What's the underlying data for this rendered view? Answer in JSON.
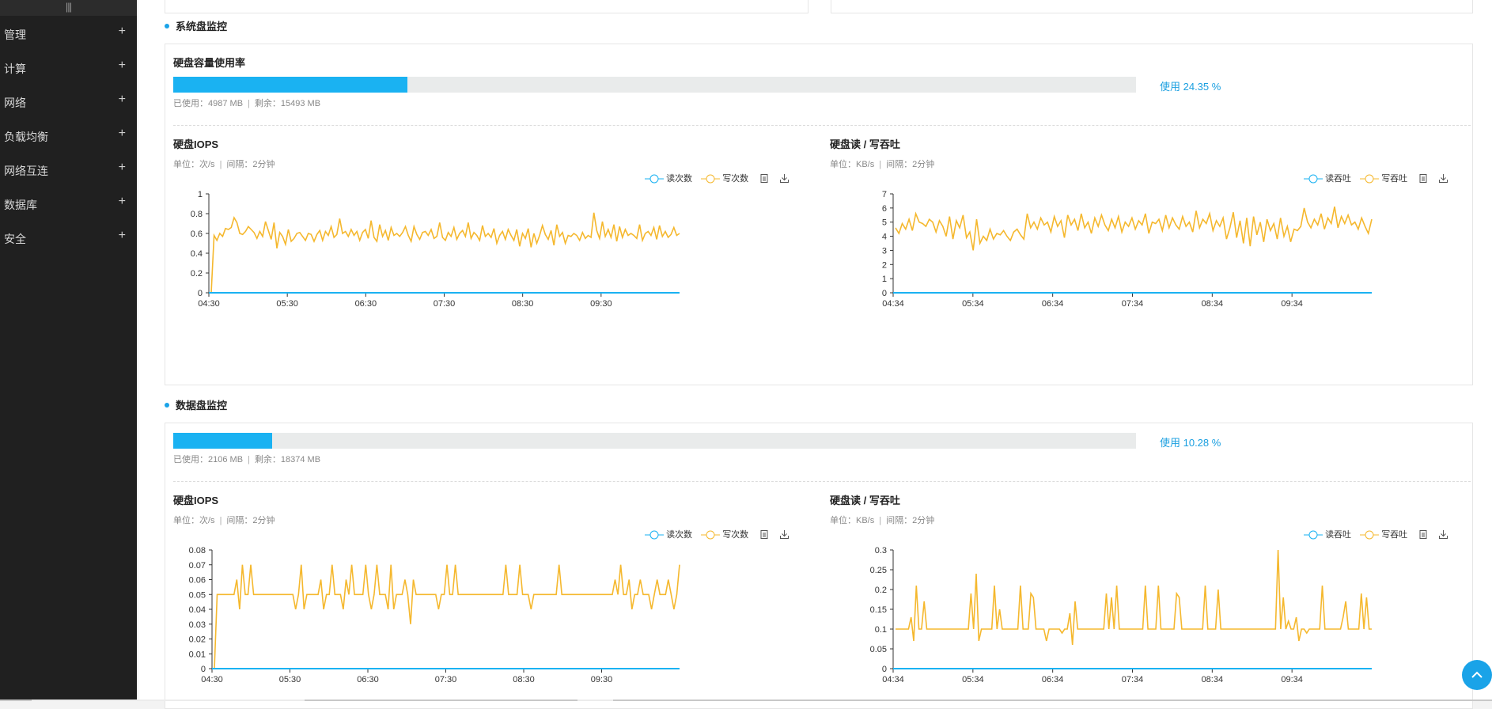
{
  "sidebar": {
    "collapse_glyph": "|||",
    "items": [
      {
        "label": "管理"
      },
      {
        "label": "计算"
      },
      {
        "label": "网络"
      },
      {
        "label": "负载均衡"
      },
      {
        "label": "网络互连"
      },
      {
        "label": "数据库"
      },
      {
        "label": "安全"
      }
    ],
    "plus": "+"
  },
  "colors": {
    "accent": "#1ab2f2",
    "read": "#1ab2f2",
    "write": "#f5b82e",
    "sidebar_bg": "#202020"
  },
  "sections": [
    {
      "title": "系统盘监控",
      "capacity": {
        "title": "硬盘容量使用率",
        "percent": 24.35,
        "usage_label": "使用 24.35 %",
        "used": "已使用：4987 MB",
        "remaining": "剩余：15493 MB"
      },
      "charts": [
        {
          "title": "硬盘IOPS",
          "unit": "单位：次/s",
          "interval": "间隔：2分钟",
          "legend": [
            "读次数",
            "写次数"
          ],
          "icons": [
            "doc-icon",
            "download-icon"
          ]
        },
        {
          "title": "硬盘读 / 写吞吐",
          "unit": "单位：KB/s",
          "interval": "间隔：2分钟",
          "legend": [
            "读吞吐",
            "写吞吐"
          ],
          "icons": [
            "doc-icon",
            "download-icon"
          ]
        }
      ]
    },
    {
      "title": "数据盘监控",
      "capacity": {
        "title": "",
        "percent": 10.28,
        "usage_label": "使用 10.28 %",
        "used": "已使用：2106 MB",
        "remaining": "剩余：18374 MB"
      },
      "charts": [
        {
          "title": "硬盘IOPS",
          "unit": "单位：次/s",
          "interval": "间隔：2分钟",
          "legend": [
            "读次数",
            "写次数"
          ],
          "icons": [
            "doc-icon",
            "download-icon"
          ]
        },
        {
          "title": "硬盘读 / 写吞吐",
          "unit": "单位：KB/s",
          "interval": "间隔：2分钟",
          "legend": [
            "读吞吐",
            "写吞吐"
          ],
          "icons": [
            "doc-icon",
            "download-icon"
          ]
        }
      ]
    }
  ],
  "chart_data": [
    {
      "type": "line",
      "x_ticks": [
        "04:30",
        "05:30",
        "06:30",
        "07:30",
        "08:30",
        "09:30"
      ],
      "ylim": [
        0,
        1
      ],
      "y_ticks": [
        "0",
        "0.2",
        "0.4",
        "0.6",
        "0.8",
        "1"
      ],
      "series": [
        {
          "name": "读次数",
          "values": [
            0
          ]
        },
        {
          "name": "写次数",
          "values": [
            0,
            0.58,
            0.53,
            0.6,
            0.57,
            0.65,
            0.64,
            0.66,
            0.76,
            0.71,
            0.6,
            0.59,
            0.62,
            0.67,
            0.64,
            0.61,
            0.55,
            0.62,
            0.57,
            0.72,
            0.63,
            0.54,
            0.71,
            0.45,
            0.61,
            0.57,
            0.49,
            0.64,
            0.52,
            0.55,
            0.6,
            0.61,
            0.57,
            0.53,
            0.6,
            0.59,
            0.52,
            0.59,
            0.63,
            0.53,
            0.62,
            0.58,
            0.67,
            0.56,
            0.59,
            0.75,
            0.6,
            0.62,
            0.57,
            0.64,
            0.58,
            0.62,
            0.53,
            0.61,
            0.64,
            0.55,
            0.73,
            0.56,
            0.52,
            0.69,
            0.57,
            0.63,
            0.53,
            0.66,
            0.58,
            0.6,
            0.57,
            0.61,
            0.67,
            0.58,
            0.52,
            0.67,
            0.59,
            0.54,
            0.61,
            0.62,
            0.58,
            0.64,
            0.55,
            0.57,
            0.71,
            0.56,
            0.53,
            0.61,
            0.57,
            0.66,
            0.54,
            0.6,
            0.63,
            0.57,
            0.71,
            0.55,
            0.61,
            0.58,
            0.53,
            0.68,
            0.57,
            0.6,
            0.56,
            0.65,
            0.5,
            0.58,
            0.62,
            0.54,
            0.64,
            0.58,
            0.53,
            0.64,
            0.47,
            0.6,
            0.55,
            0.65,
            0.46,
            0.6,
            0.5,
            0.58,
            0.68,
            0.59,
            0.54,
            0.63,
            0.48,
            0.69,
            0.57,
            0.61,
            0.5,
            0.58,
            0.57,
            0.6,
            0.58,
            0.53,
            0.61,
            0.55,
            0.58,
            0.56,
            0.81,
            0.63,
            0.55,
            0.72,
            0.57,
            0.64,
            0.56,
            0.69,
            0.52,
            0.67,
            0.56,
            0.64,
            0.58,
            0.6,
            0.58,
            0.55,
            0.69,
            0.53,
            0.6,
            0.62,
            0.58,
            0.66,
            0.54,
            0.68,
            0.57,
            0.62,
            0.56,
            0.59,
            0.66,
            0.58,
            0.6
          ]
        }
      ]
    },
    {
      "type": "line",
      "x_ticks": [
        "04:34",
        "05:34",
        "06:34",
        "07:34",
        "08:34",
        "09:34"
      ],
      "ylim": [
        0,
        7
      ],
      "y_ticks": [
        "0",
        "1",
        "2",
        "3",
        "4",
        "5",
        "6",
        "7"
      ],
      "series": [
        {
          "name": "读吞吐",
          "values": [
            0
          ]
        },
        {
          "name": "写吞吐",
          "values": [
            4.6,
            4.2,
            4.9,
            4.5,
            5.2,
            4.4,
            5.6,
            5,
            4.9,
            4.7,
            5.2,
            5,
            4.3,
            5.1,
            4.7,
            4,
            5.4,
            3.8,
            5.1,
            4.6,
            5.5,
            3.9,
            4.3,
            3,
            5.2,
            3.5,
            4,
            3.7,
            4.5,
            3.8,
            4.2,
            4.1,
            4.4,
            4,
            3.7,
            4.3,
            4.5,
            4.1,
            3.8,
            5.6,
            4.6,
            5,
            4.5,
            5.3,
            4.8,
            5,
            4.3,
            5.4,
            4.7,
            5.1,
            3.9,
            5.5,
            4.8,
            5.2,
            4.4,
            5.6,
            4.6,
            5,
            4.2,
            5.3,
            4.7,
            5.5,
            4.8,
            4.4,
            5.2,
            4.6,
            5.4,
            4.3,
            5,
            4.7,
            5.3,
            4.5,
            5.1,
            4.8,
            5.6,
            4.2,
            5,
            4.9,
            5.2,
            4.4,
            5.5,
            4.6,
            5.3,
            4.8,
            4.5,
            5.4,
            4.7,
            5,
            4.3,
            5.8,
            4.6,
            5.2,
            4.9,
            5.6,
            4.4,
            5.1,
            4.7,
            5.3,
            3.8,
            4.6,
            5.7,
            3.9,
            5.1,
            3.5,
            5.3,
            3.3,
            5.4,
            4.1,
            5,
            3.6,
            5.2,
            4.4,
            4.9,
            3.8,
            5.3,
            4,
            4.7,
            3.6,
            4.5,
            4.4,
            4.7,
            6,
            5,
            4.6,
            5.2,
            4.8,
            5.6,
            4.5,
            5.3,
            4.9,
            6.1,
            4.6,
            5.4,
            4.9,
            5.5,
            4.8,
            5,
            4.5,
            5.3,
            4.7,
            4.2,
            5.2
          ]
        }
      ]
    },
    {
      "type": "line",
      "x_ticks": [
        "04:30",
        "05:30",
        "06:30",
        "07:30",
        "08:30",
        "09:30"
      ],
      "ylim": [
        0,
        0.08
      ],
      "y_ticks": [
        "0",
        "0.01",
        "0.02",
        "0.03",
        "0.04",
        "0.05",
        "0.06",
        "0.07",
        "0.08"
      ],
      "series": [
        {
          "name": "读次数",
          "values": [
            0
          ]
        },
        {
          "name": "写次数",
          "values": [
            0,
            0.05,
            0.05,
            0.05,
            0.05,
            0.05,
            0.05,
            0.05,
            0.06,
            0.04,
            0.07,
            0.05,
            0.05,
            0.07,
            0.05,
            0.05,
            0.05,
            0.05,
            0.05,
            0.05,
            0.05,
            0.05,
            0.05,
            0.05,
            0.05,
            0.05,
            0.05,
            0.05,
            0.05,
            0.04,
            0.05,
            0.07,
            0.04,
            0.05,
            0.05,
            0.05,
            0.05,
            0.05,
            0.06,
            0.04,
            0.05,
            0.05,
            0.07,
            0.05,
            0.05,
            0.05,
            0.04,
            0.06,
            0.05,
            0.07,
            0.05,
            0.05,
            0.05,
            0.05,
            0.07,
            0.05,
            0.04,
            0.05,
            0.07,
            0.05,
            0.05,
            0.05,
            0.04,
            0.07,
            0.04,
            0.05,
            0.05,
            0.05,
            0.06,
            0.05,
            0.03,
            0.06,
            0.05,
            0.05,
            0.05,
            0.05,
            0.05,
            0.05,
            0.05,
            0.05,
            0.04,
            0.05,
            0.05,
            0.07,
            0.05,
            0.05,
            0.07,
            0.05,
            0.05,
            0.05,
            0.05,
            0.05,
            0.05,
            0.05,
            0.05,
            0.05,
            0.05,
            0.05,
            0.05,
            0.05,
            0.05,
            0.05,
            0.05,
            0.05,
            0.07,
            0.05,
            0.05,
            0.05,
            0.05,
            0.07,
            0.05,
            0.05,
            0.05,
            0.04,
            0.05,
            0.05,
            0.05,
            0.05,
            0.05,
            0.05,
            0.05,
            0.05,
            0.05,
            0.07,
            0.05,
            0.05,
            0.05,
            0.05,
            0.05,
            0.05,
            0.05,
            0.05,
            0.05,
            0.05,
            0.05,
            0.05,
            0.05,
            0.05,
            0.05,
            0.05,
            0.05,
            0.05,
            0.05,
            0.06,
            0.05,
            0.07,
            0.05,
            0.05,
            0.06,
            0.04,
            0.05,
            0.05,
            0.06,
            0.05,
            0.05,
            0.05,
            0.04,
            0.05,
            0.06,
            0.05,
            0.05,
            0.05,
            0.06,
            0.05,
            0.04,
            0.05,
            0.07
          ]
        }
      ]
    },
    {
      "type": "line",
      "x_ticks": [
        "04:34",
        "05:34",
        "06:34",
        "07:34",
        "08:34",
        "09:34"
      ],
      "ylim": [
        0,
        0.3
      ],
      "y_ticks": [
        "0",
        "0.05",
        "0.1",
        "0.15",
        "0.2",
        "0.25",
        "0.3"
      ],
      "series": [
        {
          "name": "读吞吐",
          "values": [
            0
          ]
        },
        {
          "name": "写吞吐",
          "values": [
            0.1,
            0.1,
            0.1,
            0.1,
            0.1,
            0.1,
            0.13,
            0.07,
            0.21,
            0.1,
            0.1,
            0.17,
            0.1,
            0.1,
            0.1,
            0.1,
            0.1,
            0.1,
            0.1,
            0.1,
            0.1,
            0.1,
            0.1,
            0.1,
            0.1,
            0.1,
            0.1,
            0.1,
            0.1,
            0.19,
            0.1,
            0.24,
            0.07,
            0.1,
            0.1,
            0.1,
            0.1,
            0.1,
            0.21,
            0.1,
            0.15,
            0.1,
            0.1,
            0.1,
            0.1,
            0.1,
            0.1,
            0.1,
            0.21,
            0.1,
            0.1,
            0.1,
            0.19,
            0.18,
            0.1,
            0.1,
            0.1,
            0.1,
            0.07,
            0.1,
            0.1,
            0.1,
            0.1,
            0.1,
            0.09,
            0.1,
            0.1,
            0.14,
            0.06,
            0.17,
            0.1,
            0.1,
            0.1,
            0.1,
            0.1,
            0.1,
            0.1,
            0.1,
            0.1,
            0.1,
            0.1,
            0.19,
            0.1,
            0.18,
            0.1,
            0.21,
            0.1,
            0.1,
            0.1,
            0.1,
            0.1,
            0.1,
            0.1,
            0.1,
            0.1,
            0.1,
            0.21,
            0.1,
            0.1,
            0.1,
            0.1,
            0.21,
            0.1,
            0.1,
            0.1,
            0.1,
            0.1,
            0.1,
            0.19,
            0.18,
            0.1,
            0.1,
            0.1,
            0.1,
            0.1,
            0.1,
            0.1,
            0.1,
            0.1,
            0.21,
            0.1,
            0.1,
            0.1,
            0.1,
            0.2,
            0.1,
            0.1,
            0.1,
            0.1,
            0.1,
            0.1,
            0.1,
            0.1,
            0.1,
            0.1,
            0.1,
            0.1,
            0.1,
            0.1,
            0.1,
            0.1,
            0.1,
            0.1,
            0.1,
            0.1,
            0.1,
            0.1,
            0.3,
            0.1,
            0.18,
            0.1,
            0.12,
            0.1,
            0.1,
            0.13,
            0.07,
            0.1,
            0.1,
            0.09,
            0.1,
            0.1,
            0.1,
            0.1,
            0.1,
            0.21,
            0.1,
            0.1,
            0.1,
            0.1,
            0.1,
            0.1,
            0.1,
            0.13,
            0.17,
            0.1,
            0.1,
            0.1,
            0.1,
            0.1,
            0.19,
            0.1,
            0.18,
            0.1,
            0.1
          ]
        }
      ]
    }
  ]
}
